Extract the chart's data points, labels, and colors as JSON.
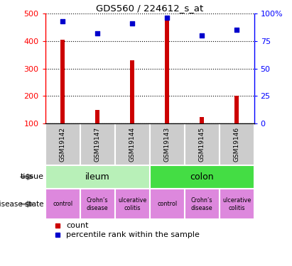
{
  "title": "GDS560 / 224612_s_at",
  "samples": [
    "GSM19142",
    "GSM19147",
    "GSM19144",
    "GSM19143",
    "GSM19145",
    "GSM19146"
  ],
  "counts": [
    405,
    150,
    330,
    475,
    125,
    200
  ],
  "percentiles": [
    93,
    82,
    91,
    96,
    80,
    85
  ],
  "ylim_left": [
    100,
    500
  ],
  "ylim_right": [
    0,
    100
  ],
  "yticks_left": [
    100,
    200,
    300,
    400,
    500
  ],
  "yticks_right": [
    0,
    25,
    50,
    75,
    100
  ],
  "ytick_labels_right": [
    "0",
    "25",
    "50",
    "75",
    "100%"
  ],
  "bar_color": "#cc0000",
  "dot_color": "#0000cc",
  "tissue_rows": [
    {
      "label": "ileum",
      "span": [
        0,
        3
      ],
      "color": "#b8f0b8"
    },
    {
      "label": "colon",
      "span": [
        3,
        6
      ],
      "color": "#44dd44"
    }
  ],
  "disease_rows": [
    {
      "label": "control",
      "span": [
        0,
        1
      ],
      "color": "#dd88dd"
    },
    {
      "label": "Crohn’s\ndisease",
      "span": [
        1,
        2
      ],
      "color": "#dd88dd"
    },
    {
      "label": "ulcerative\ncolitis",
      "span": [
        2,
        3
      ],
      "color": "#dd88dd"
    },
    {
      "label": "control",
      "span": [
        3,
        4
      ],
      "color": "#dd88dd"
    },
    {
      "label": "Crohn’s\ndisease",
      "span": [
        4,
        5
      ],
      "color": "#dd88dd"
    },
    {
      "label": "ulcerative\ncolitis",
      "span": [
        5,
        6
      ],
      "color": "#dd88dd"
    }
  ],
  "xticklabel_bg": "#cccccc",
  "bar_width": 0.12,
  "legend_count_color": "#cc0000",
  "legend_pct_color": "#0000cc"
}
